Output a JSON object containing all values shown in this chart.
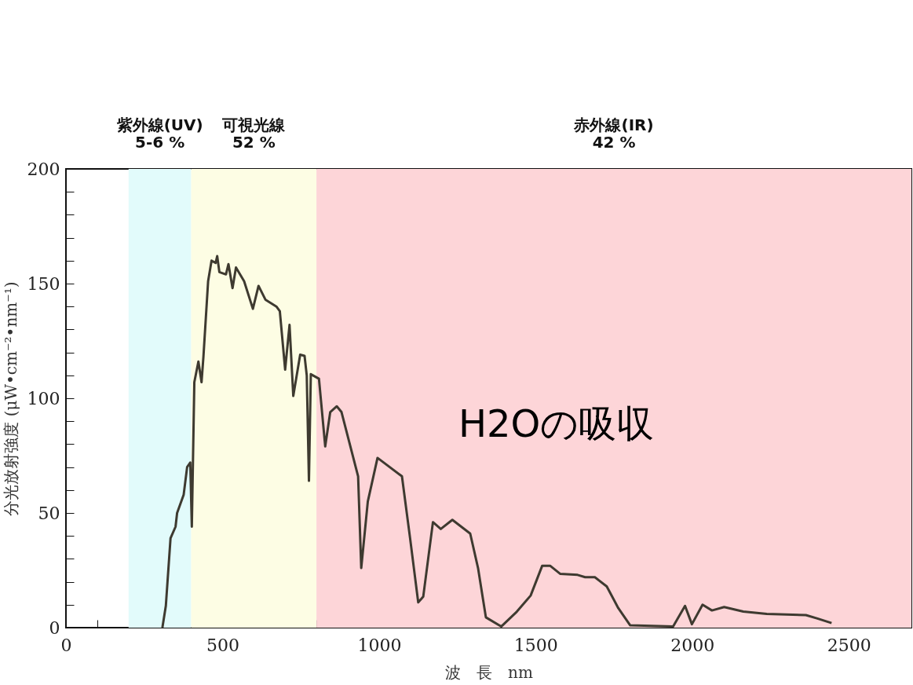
{
  "chart_data": {
    "type": "line",
    "xlabel": "波　長　nm",
    "ylabel": "分光放射強度 (μW•cm⁻²•nm⁻¹)",
    "x": [
      308,
      319,
      334,
      350,
      355,
      376,
      387,
      397,
      402,
      410,
      423,
      433,
      439,
      454,
      465,
      478,
      483,
      490,
      511,
      519,
      532,
      543,
      569,
      597,
      615,
      637,
      672,
      683,
      700,
      714,
      726,
      748,
      762,
      769,
      776,
      782,
      808,
      828,
      844,
      865,
      880,
      933,
      943,
      964,
      995,
      1073,
      1099,
      1125,
      1141,
      1172,
      1197,
      1234,
      1291,
      1316,
      1341,
      1390,
      1440,
      1484,
      1521,
      1546,
      1578,
      1634,
      1658,
      1689,
      1727,
      1764,
      1802,
      1939,
      1977,
      1999,
      2033,
      2063,
      2102,
      2163,
      2238,
      2363,
      2400,
      2445
    ],
    "series": [
      {
        "color": "#3e3a30",
        "values": [
          0,
          9.5,
          39,
          44,
          50,
          58,
          70,
          72,
          44,
          107,
          116,
          107,
          118,
          151,
          160,
          159,
          162,
          155,
          154,
          158.5,
          148,
          157,
          151,
          139,
          149,
          143,
          140,
          138,
          112.5,
          132,
          101,
          119,
          118.5,
          110,
          64,
          110.5,
          108.5,
          79,
          94,
          96.5,
          94,
          66,
          26,
          55,
          74,
          66,
          39,
          11,
          13.5,
          46,
          43,
          47,
          41,
          26,
          4.5,
          0.5,
          7,
          14,
          27,
          27,
          23.5,
          23,
          22,
          22,
          18,
          8.5,
          1,
          0.5,
          9.5,
          1.5,
          10,
          7.5,
          9,
          7,
          6,
          5.5,
          4,
          2
        ]
      }
    ],
    "xlim": [
      0,
      2700
    ],
    "ylim": [
      0,
      200
    ],
    "xticks": [
      0,
      {
        "value": 100,
        "label": null
      },
      {
        "value": 200,
        "label": null
      },
      {
        "value": 300,
        "label": null
      },
      {
        "value": 400,
        "label": null
      },
      500,
      {
        "value": 600,
        "label": null
      },
      {
        "value": 700,
        "label": null
      },
      {
        "value": 800,
        "label": null
      },
      {
        "value": 900,
        "label": null
      },
      1000,
      {
        "value": 1100,
        "label": null
      },
      {
        "value": 1200,
        "label": null
      },
      {
        "value": 1300,
        "label": null
      },
      {
        "value": 1400,
        "label": null
      },
      1500,
      {
        "value": 1600,
        "label": null
      },
      {
        "value": 1700,
        "label": null
      },
      {
        "value": 1800,
        "label": null
      },
      {
        "value": 1900,
        "label": null
      },
      2000,
      {
        "value": 2100,
        "label": null
      },
      {
        "value": 2200,
        "label": null
      },
      {
        "value": 2300,
        "label": null
      },
      {
        "value": 2400,
        "label": null
      },
      2500,
      {
        "value": 2600,
        "label": null
      }
    ],
    "yticks": [
      0,
      {
        "value": 10,
        "label": null
      },
      {
        "value": 20,
        "label": null
      },
      {
        "value": 30,
        "label": null
      },
      {
        "value": 40,
        "label": null
      },
      50,
      {
        "value": 60,
        "label": null
      },
      {
        "value": 70,
        "label": null
      },
      {
        "value": 80,
        "label": null
      },
      {
        "value": 90,
        "label": null
      },
      100,
      {
        "value": 110,
        "label": null
      },
      {
        "value": 120,
        "label": null
      },
      {
        "value": 130,
        "label": null
      },
      {
        "value": 140,
        "label": null
      },
      150,
      {
        "value": 160,
        "label": null
      },
      {
        "value": 170,
        "label": null
      },
      {
        "value": 180,
        "label": null
      },
      {
        "value": 190,
        "label": null
      },
      200
    ],
    "bands": [
      {
        "axis": "x",
        "from": 200,
        "to": 400,
        "label": "紫外線(UV)\n5-6 %",
        "color": "#e2fbfb"
      },
      {
        "axis": "x",
        "from": 400,
        "to": 800,
        "label": "可視光線\n52 %",
        "color": "#fdfde4"
      },
      {
        "axis": "x",
        "from": 800,
        "to": 2700,
        "label": "赤外線(IR)\n42 %",
        "color": "#fdd5d8"
      }
    ],
    "annotations": [
      "H2Oの吸収"
    ]
  }
}
